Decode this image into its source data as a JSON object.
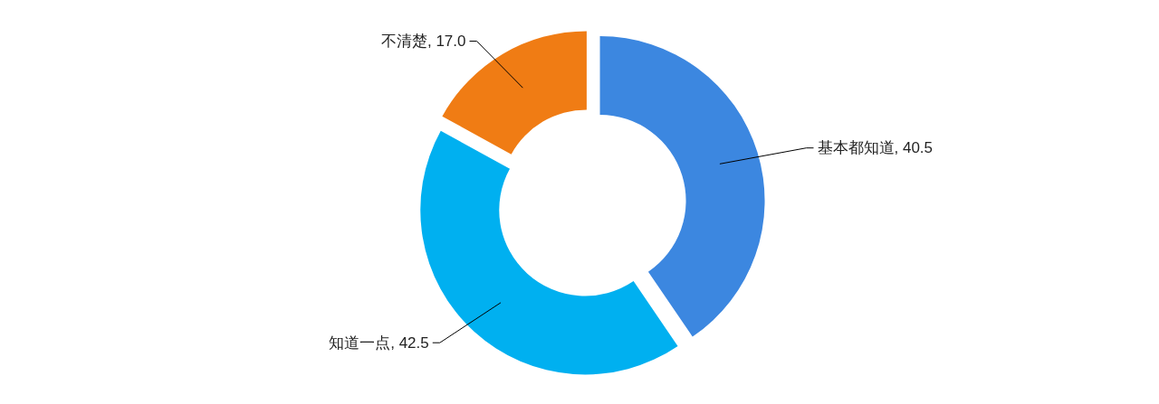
{
  "chart_data": {
    "type": "donut",
    "categories": [
      "基本都知道",
      "知道一点",
      "不清楚"
    ],
    "values": [
      40.5,
      42.5,
      17.0
    ],
    "colors": [
      "#3c87e0",
      "#00b0f0",
      "#f07c14"
    ],
    "value_labels": [
      "40.5",
      "42.5",
      "17.0"
    ]
  }
}
